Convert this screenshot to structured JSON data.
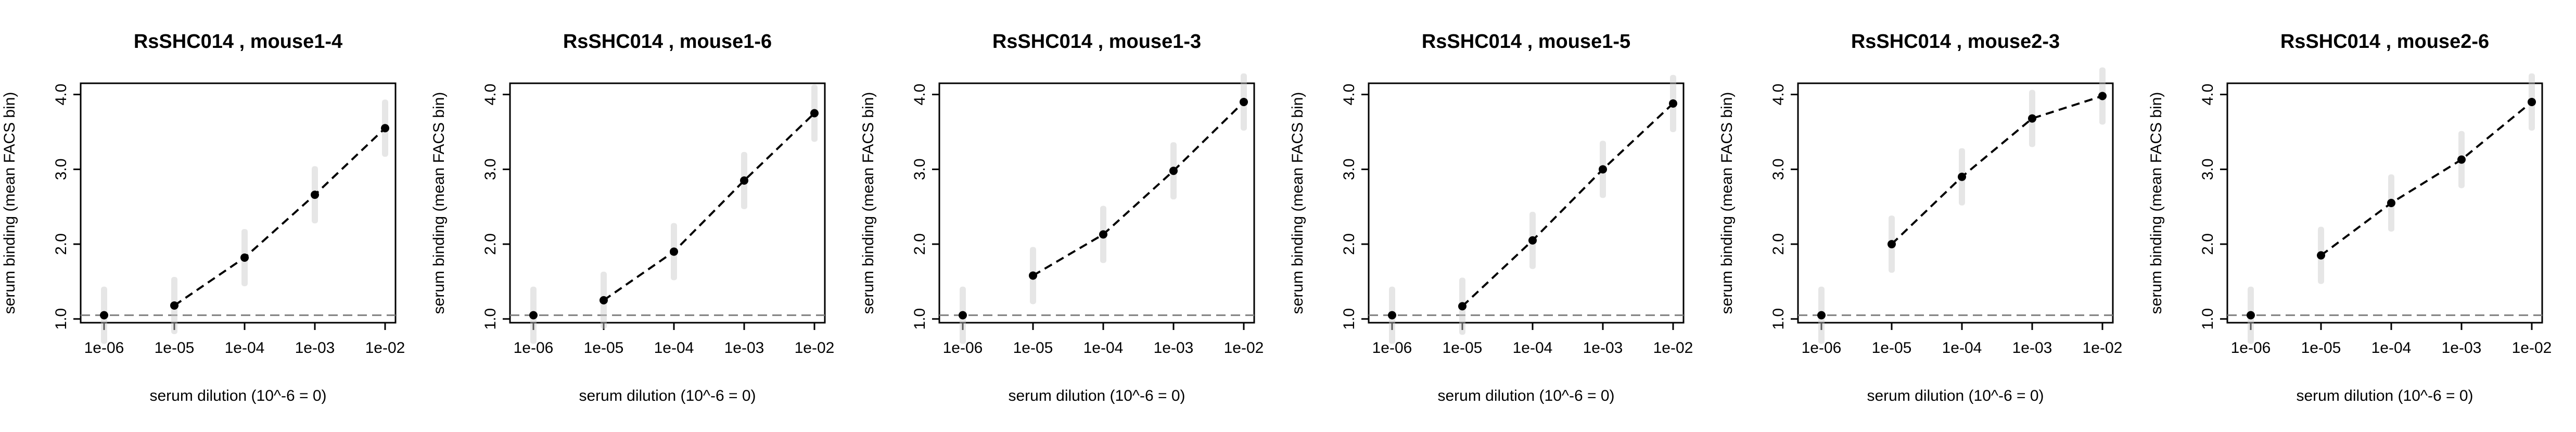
{
  "chart_data": [
    {
      "type": "line",
      "title": "RsSHC014 , mouse1-4",
      "xlabel": "serum dilution (10^-6 = 0)",
      "ylabel": "serum binding (mean FACS bin)",
      "x_scale": "log",
      "x_ticks": [
        "1e-06",
        "1e-05",
        "1e-04",
        "1e-03",
        "1e-02"
      ],
      "y_ticks": [
        "1.0",
        "2.0",
        "3.0",
        "4.0"
      ],
      "ylim": [
        0.95,
        4.15
      ],
      "xlim": [
        1e-06,
        0.01
      ],
      "baseline": 1.05,
      "grid": false,
      "x": [
        1e-06,
        1e-05,
        0.0001,
        0.001,
        0.01
      ],
      "y": [
        1.05,
        1.18,
        1.82,
        2.66,
        3.55
      ],
      "line_from_index": 1
    },
    {
      "type": "line",
      "title": "RsSHC014 , mouse1-6",
      "xlabel": "serum dilution (10^-6 = 0)",
      "ylabel": "serum binding (mean FACS bin)",
      "x_scale": "log",
      "x_ticks": [
        "1e-06",
        "1e-05",
        "1e-04",
        "1e-03",
        "1e-02"
      ],
      "y_ticks": [
        "1.0",
        "2.0",
        "3.0",
        "4.0"
      ],
      "ylim": [
        0.95,
        4.15
      ],
      "xlim": [
        1e-06,
        0.01
      ],
      "baseline": 1.05,
      "grid": false,
      "x": [
        1e-06,
        1e-05,
        0.0001,
        0.001,
        0.01
      ],
      "y": [
        1.05,
        1.25,
        1.9,
        2.85,
        3.75
      ],
      "line_from_index": 1
    },
    {
      "type": "line",
      "title": "RsSHC014 , mouse1-3",
      "xlabel": "serum dilution (10^-6 = 0)",
      "ylabel": "serum binding (mean FACS bin)",
      "x_scale": "log",
      "x_ticks": [
        "1e-06",
        "1e-05",
        "1e-04",
        "1e-03",
        "1e-02"
      ],
      "y_ticks": [
        "1.0",
        "2.0",
        "3.0",
        "4.0"
      ],
      "ylim": [
        0.95,
        4.15
      ],
      "xlim": [
        1e-06,
        0.01
      ],
      "baseline": 1.05,
      "grid": false,
      "x": [
        1e-06,
        1e-05,
        0.0001,
        0.001,
        0.01
      ],
      "y": [
        1.05,
        1.58,
        2.13,
        2.98,
        3.9
      ],
      "line_from_index": 1
    },
    {
      "type": "line",
      "title": "RsSHC014 , mouse1-5",
      "xlabel": "serum dilution (10^-6 = 0)",
      "ylabel": "serum binding (mean FACS bin)",
      "x_scale": "log",
      "x_ticks": [
        "1e-06",
        "1e-05",
        "1e-04",
        "1e-03",
        "1e-02"
      ],
      "y_ticks": [
        "1.0",
        "2.0",
        "3.0",
        "4.0"
      ],
      "ylim": [
        0.95,
        4.15
      ],
      "xlim": [
        1e-06,
        0.01
      ],
      "baseline": 1.05,
      "grid": false,
      "x": [
        1e-06,
        1e-05,
        0.0001,
        0.001,
        0.01
      ],
      "y": [
        1.05,
        1.17,
        2.05,
        3.0,
        3.88
      ],
      "line_from_index": 1
    },
    {
      "type": "line",
      "title": "RsSHC014 , mouse2-3",
      "xlabel": "serum dilution (10^-6 = 0)",
      "ylabel": "serum binding (mean FACS bin)",
      "x_scale": "log",
      "x_ticks": [
        "1e-06",
        "1e-05",
        "1e-04",
        "1e-03",
        "1e-02"
      ],
      "y_ticks": [
        "1.0",
        "2.0",
        "3.0",
        "4.0"
      ],
      "ylim": [
        0.95,
        4.15
      ],
      "xlim": [
        1e-06,
        0.01
      ],
      "baseline": 1.05,
      "grid": false,
      "x": [
        1e-06,
        1e-05,
        0.0001,
        0.001,
        0.01
      ],
      "y": [
        1.05,
        2.0,
        2.9,
        3.68,
        3.98
      ],
      "line_from_index": 1
    },
    {
      "type": "line",
      "title": "RsSHC014 , mouse2-6",
      "xlabel": "serum dilution (10^-6 = 0)",
      "ylabel": "serum binding (mean FACS bin)",
      "x_scale": "log",
      "x_ticks": [
        "1e-06",
        "1e-05",
        "1e-04",
        "1e-03",
        "1e-02"
      ],
      "y_ticks": [
        "1.0",
        "2.0",
        "3.0",
        "4.0"
      ],
      "ylim": [
        0.95,
        4.15
      ],
      "xlim": [
        1e-06,
        0.01
      ],
      "baseline": 1.05,
      "grid": false,
      "x": [
        1e-06,
        1e-05,
        0.0001,
        0.001,
        0.01
      ],
      "y": [
        1.05,
        1.85,
        2.55,
        3.13,
        3.9
      ],
      "line_from_index": 1
    }
  ],
  "colors": {
    "points": "#000000",
    "line": "#000000",
    "baseline": "#808080",
    "smear": "#c8c8c8",
    "axis": "#000000"
  }
}
